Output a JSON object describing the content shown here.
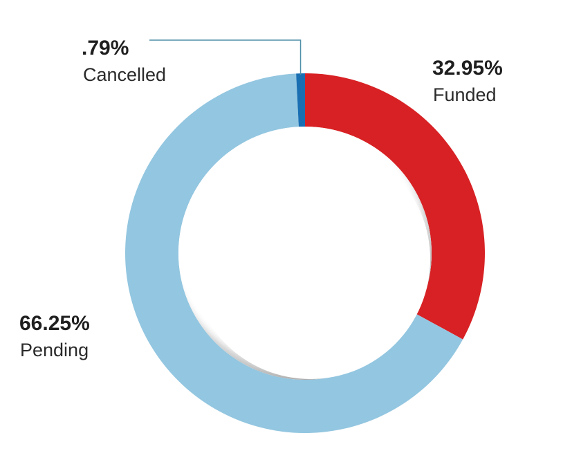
{
  "chart_data": {
    "type": "pie",
    "style": "donut",
    "slices": [
      {
        "name": "Funded",
        "value": 32.95,
        "value_label": "32.95%",
        "color": "#d82124"
      },
      {
        "name": "Pending",
        "value": 66.25,
        "value_label": "66.25%",
        "color": "#93c6e0"
      },
      {
        "name": "Cancelled",
        "value": 0.79,
        "value_label": ".79%",
        "color": "#1a6fb3"
      }
    ],
    "start_angle": "top",
    "direction": "clockwise"
  }
}
